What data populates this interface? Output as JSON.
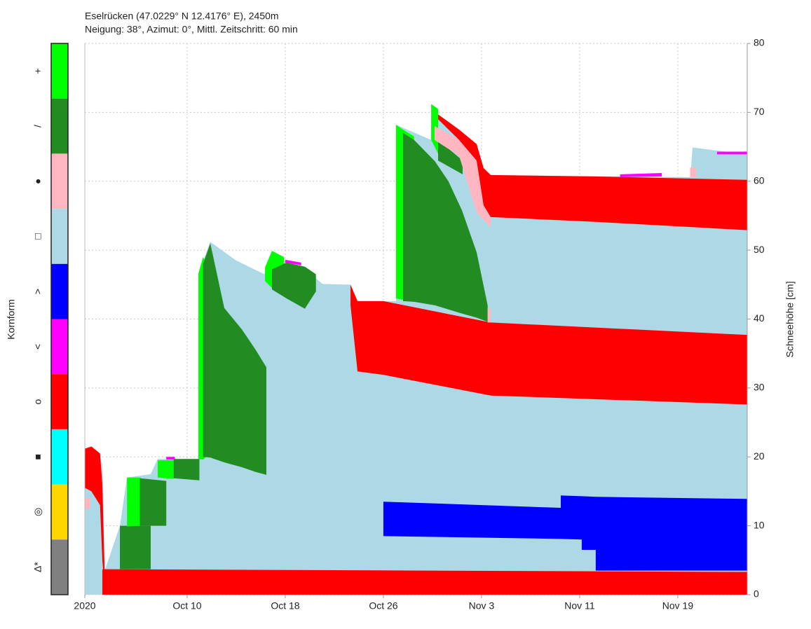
{
  "chart_data": {
    "type": "snow-profile",
    "title": "Eselrücken (47.0229° N 12.4176° E), 2450m",
    "subtitle": "Neigung: 38°, Azimut: 0°, Mittl. Zeitschritt: 60 min",
    "legend_title": "Kornform",
    "y_label": "Schneehöhe [cm]",
    "grain_types": [
      {
        "symbol": "+",
        "color": "#00ff00"
      },
      {
        "symbol": "/",
        "color": "#228b22"
      },
      {
        "symbol": "●",
        "color": "#ffb6c1"
      },
      {
        "symbol": "□",
        "color": "#add8e6"
      },
      {
        "symbol": ">",
        "color": "#0000ff"
      },
      {
        "symbol": "<",
        "color": "#ff00ff"
      },
      {
        "symbol": "o",
        "color": "#ff0000"
      },
      {
        "symbol": "■",
        "color": "#00ffff"
      },
      {
        "symbol": "◎",
        "color": "#ffd700"
      },
      {
        "symbol": "Δ*",
        "color": "#808080"
      }
    ],
    "xlim": [
      0.66,
      54.66
    ],
    "xticks": [
      {
        "value": 0.66,
        "label": "2020"
      },
      {
        "value": 9,
        "label": "Oct 10"
      },
      {
        "value": 17,
        "label": "Oct 18"
      },
      {
        "value": 25,
        "label": "Oct 26"
      },
      {
        "value": 33,
        "label": "Nov 3"
      },
      {
        "value": 41,
        "label": "Nov 11"
      },
      {
        "value": 49,
        "label": "Nov 19"
      }
    ],
    "ylim": [
      0,
      80
    ],
    "yticks": [
      0,
      10,
      20,
      30,
      40,
      50,
      60,
      70,
      80
    ],
    "grid": true,
    "layers": [
      {
        "grain": 3,
        "x": [
          2.32,
          3.52,
          4.1,
          6.03,
          6.6,
          9.92,
          9.92,
          10.89,
          13,
          15.3,
          15.92,
          16.9,
          18.5,
          20.03,
          22.32,
          22.89,
          25,
          26.03,
          26.03,
          28.9,
          28.9,
          29.46,
          32.6,
          33.17,
          33.75,
          42.31,
          50.03,
          50.2,
          54.66
        ],
        "top": [
          3.7,
          10,
          17,
          17.5,
          19.7,
          19.7,
          46.6,
          51.2,
          48.5,
          46.5,
          49.9,
          48.5,
          47.5,
          45.1,
          45,
          42.6,
          42.6,
          42.6,
          68.2,
          66,
          71.2,
          69.7,
          65.4,
          61.9,
          60.9,
          60.7,
          60.6,
          64.9,
          63.9
        ],
        "bottom": [
          0,
          0,
          0,
          0,
          0,
          0,
          0,
          0,
          0,
          0,
          0,
          0,
          0,
          0,
          0,
          0,
          0,
          0,
          0,
          0,
          0,
          0,
          0,
          0,
          0,
          0,
          0,
          0,
          0
        ]
      },
      {
        "grain": 3,
        "x": [
          0.66,
          1.5,
          2.09,
          2.32
        ],
        "top": [
          21.2,
          21,
          19,
          0
        ],
        "bottom": [
          0,
          0,
          0,
          0
        ]
      },
      {
        "grain": 6,
        "x": [
          0.66,
          1.2,
          1.9,
          2.09,
          2.32
        ],
        "top": [
          21.2,
          21.5,
          20.5,
          16,
          0
        ],
        "bottom": [
          15.5,
          15,
          13,
          5,
          0
        ]
      },
      {
        "grain": 2,
        "x": [
          0.66,
          1.1
        ],
        "top": [
          14,
          14
        ],
        "bottom": [
          12.5,
          12.5
        ]
      },
      {
        "grain": 6,
        "x": [
          2.09,
          54.66
        ],
        "top": [
          3.7,
          3.3
        ],
        "bottom": [
          0,
          0
        ]
      },
      {
        "grain": 1,
        "x": [
          3.52,
          6.03
        ],
        "top": [
          10,
          10
        ],
        "bottom": [
          3.7,
          3.7
        ]
      },
      {
        "grain": 0,
        "x": [
          4.1,
          5.2
        ],
        "top": [
          17,
          17
        ],
        "bottom": [
          9.9,
          10
        ]
      },
      {
        "grain": 1,
        "x": [
          5.15,
          7.3
        ],
        "top": [
          16.9,
          16.5
        ],
        "bottom": [
          10,
          10
        ]
      },
      {
        "grain": 0,
        "x": [
          6.6,
          7.9
        ],
        "top": [
          19.5,
          19.5
        ],
        "bottom": [
          17,
          16.8
        ]
      },
      {
        "grain": 1,
        "x": [
          7.9,
          10.0
        ],
        "top": [
          19.7,
          19.7
        ],
        "bottom": [
          16.9,
          16.6
        ]
      },
      {
        "grain": 5,
        "x": [
          7.3,
          8.0
        ],
        "top": [
          20,
          20
        ],
        "bottom": [
          19.6,
          19.6
        ]
      },
      {
        "grain": 0,
        "x": [
          9.92,
          10.3,
          10.89
        ],
        "top": [
          46.6,
          49,
          47
        ],
        "bottom": [
          19.7,
          19.6,
          20.5
        ]
      },
      {
        "grain": 1,
        "x": [
          10.3,
          10.89,
          12.03,
          13.46,
          14.6,
          15.46
        ],
        "top": [
          48,
          51,
          41.6,
          38.5,
          35.5,
          33
        ],
        "bottom": [
          20,
          19.9,
          19.2,
          18.5,
          17.8,
          17.4
        ]
      },
      {
        "grain": 0,
        "x": [
          15.35,
          15.92,
          16.9
        ],
        "top": [
          47.5,
          49.9,
          49
        ],
        "bottom": [
          45.5,
          44.5,
          44
        ]
      },
      {
        "grain": 1,
        "x": [
          15.92,
          17.1,
          18.1,
          18.6,
          19.5
        ],
        "top": [
          47.2,
          48.2,
          47.8,
          47.6,
          46.5
        ],
        "bottom": [
          44.3,
          43,
          42,
          41.5,
          44
        ]
      },
      {
        "grain": 5,
        "x": [
          17.0,
          18.3
        ],
        "top": [
          48.6,
          48.2
        ],
        "bottom": [
          48.2,
          47.8
        ]
      },
      {
        "grain": 6,
        "x": [
          22.32,
          22.89,
          25,
          33.75,
          54.66
        ],
        "top": [
          45,
          42.6,
          42.6,
          39.5,
          37.7
        ],
        "bottom": [
          42,
          32.4,
          31.9,
          28.9,
          27.6
        ]
      },
      {
        "grain": 0,
        "x": [
          26.03,
          26.6,
          27.5
        ],
        "top": [
          68.2,
          67.5,
          66.5
        ],
        "bottom": [
          43,
          42.8,
          42.5
        ]
      },
      {
        "grain": 1,
        "x": [
          26.6,
          27.5,
          29.2,
          30.3,
          31.4,
          32.6,
          33.5
        ],
        "top": [
          67,
          66,
          62.9,
          60,
          55.8,
          49.7,
          42
        ],
        "bottom": [
          42.6,
          42.5,
          42,
          41.4,
          40.8,
          40.2,
          39.6
        ]
      },
      {
        "grain": 0,
        "x": [
          28.9,
          29.46
        ],
        "top": [
          71.2,
          70.5
        ],
        "bottom": [
          66,
          64
        ]
      },
      {
        "grain": 1,
        "x": [
          29.46,
          31.46
        ],
        "top": [
          66,
          63
        ],
        "bottom": [
          63,
          61
        ]
      },
      {
        "grain": 2,
        "x": [
          29.17,
          31.17,
          32.6,
          33.75
        ],
        "top": [
          68,
          66,
          63,
          55
        ],
        "bottom": [
          66,
          63.7,
          55.5,
          53.3
        ]
      },
      {
        "grain": 6,
        "x": [
          29.46,
          31.17,
          32.6,
          33.17,
          33.75,
          42.31,
          54.66
        ],
        "top": [
          69.7,
          67.5,
          65.4,
          61.9,
          60.9,
          60.7,
          60.2
        ],
        "bottom": [
          69,
          66,
          63,
          56.5,
          54.8,
          54.1,
          52.9
        ]
      },
      {
        "grain": 2,
        "x": [
          33.5,
          33.75
        ],
        "top": [
          41.5,
          41.5
        ],
        "bottom": [
          39.5,
          39.5
        ]
      },
      {
        "grain": 4,
        "x": [
          25,
          39.46,
          39.46,
          41.17,
          41.17,
          42.31,
          42.31,
          54.66
        ],
        "top": [
          13.5,
          12.6,
          14.4,
          14.3,
          14.3,
          14.2,
          14.2,
          13.9
        ],
        "bottom": [
          8.5,
          8.1,
          8.1,
          8.0,
          6.5,
          6.5,
          3.5,
          3.5
        ]
      },
      {
        "grain": 5,
        "x": [
          44.3,
          47.7
        ],
        "top": [
          61.0,
          61.2
        ],
        "bottom": [
          60.6,
          60.7
        ]
      },
      {
        "grain": 2,
        "x": [
          50.0,
          50.5
        ],
        "top": [
          62,
          62
        ],
        "bottom": [
          60.6,
          60.6
        ]
      },
      {
        "grain": 5,
        "x": [
          52.2,
          54.66
        ],
        "top": [
          64.3,
          64.3
        ],
        "bottom": [
          63.9,
          63.9
        ]
      }
    ]
  }
}
